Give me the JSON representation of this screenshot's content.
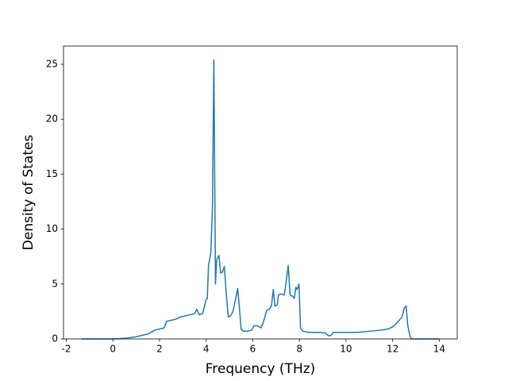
{
  "chart_data": {
    "type": "line",
    "xlabel": "Frequency (THz)",
    "ylabel": "Density of States",
    "color": "#1f77b4",
    "x": [
      -1.35,
      0,
      0.5,
      1,
      1.5,
      1.8,
      2.0,
      2.2,
      2.3,
      2.5,
      2.7,
      2.9,
      3.1,
      3.3,
      3.5,
      3.6,
      3.7,
      3.85,
      4.0,
      4.05,
      4.1,
      4.2,
      4.27,
      4.33,
      4.4,
      4.45,
      4.55,
      4.62,
      4.7,
      4.78,
      4.85,
      4.95,
      5.05,
      5.15,
      5.25,
      5.35,
      5.42,
      5.5,
      5.6,
      5.75,
      5.95,
      6.05,
      6.2,
      6.35,
      6.45,
      6.6,
      6.7,
      6.8,
      6.88,
      6.95,
      7.05,
      7.1,
      7.2,
      7.35,
      7.42,
      7.52,
      7.6,
      7.7,
      7.78,
      7.85,
      7.9,
      7.98,
      8.05,
      8.15,
      8.4,
      8.8,
      9.1,
      9.25,
      9.35,
      9.45,
      9.8,
      10.0,
      10.5,
      11.0,
      11.5,
      11.8,
      12.0,
      12.2,
      12.4,
      12.5,
      12.58,
      12.65,
      12.75,
      12.8,
      14
    ],
    "values": [
      0,
      0,
      0.05,
      0.2,
      0.45,
      0.8,
      0.9,
      1.0,
      1.6,
      1.7,
      1.8,
      2.0,
      2.1,
      2.2,
      2.3,
      2.7,
      2.2,
      2.3,
      3.6,
      3.7,
      6.7,
      7.8,
      12,
      25.4,
      5.0,
      7.2,
      7.6,
      6.0,
      6.1,
      6.6,
      4.5,
      2.0,
      2.1,
      2.5,
      3.5,
      4.6,
      3.0,
      0.9,
      0.7,
      0.7,
      0.8,
      1.2,
      1.2,
      1.0,
      1.5,
      2.6,
      2.7,
      3.0,
      4.5,
      3.0,
      3.1,
      4.0,
      4.1,
      4.0,
      5.0,
      6.7,
      4.0,
      3.9,
      3.7,
      4.7,
      4.5,
      5.0,
      1.0,
      0.7,
      0.6,
      0.6,
      0.55,
      0.3,
      0.3,
      0.6,
      0.6,
      0.6,
      0.6,
      0.7,
      0.8,
      0.9,
      1.1,
      1.5,
      2.0,
      2.8,
      3.0,
      1.2,
      0.2,
      0,
      0
    ],
    "xlim": [
      -2.12,
      14.77
    ],
    "ylim": [
      0,
      26.66
    ],
    "xticks": [
      -2,
      0,
      2,
      4,
      6,
      8,
      10,
      12,
      14
    ],
    "yticks": [
      0,
      5,
      10,
      15,
      20,
      25
    ],
    "grid": false
  }
}
